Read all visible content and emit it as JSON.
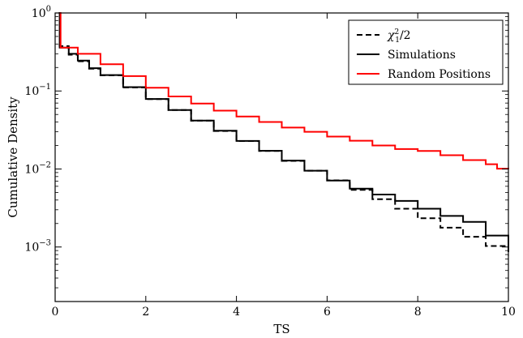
{
  "chart_data": {
    "type": "line",
    "xlabel": "TS",
    "ylabel": "Cumulative Density",
    "xlim": [
      0,
      10
    ],
    "ylim": [
      0.0002,
      1
    ],
    "yscale": "log",
    "grid": false,
    "legend_position": "top-right",
    "x_ticks": [
      {
        "value": 0,
        "label": "0"
      },
      {
        "value": 2,
        "label": "2"
      },
      {
        "value": 4,
        "label": "4"
      },
      {
        "value": 6,
        "label": "6"
      },
      {
        "value": 8,
        "label": "8"
      },
      {
        "value": 10,
        "label": "10"
      }
    ],
    "y_ticks": [
      {
        "value": 1,
        "base": "10",
        "exp": "0"
      },
      {
        "value": 0.1,
        "base": "10",
        "exp": "−1"
      },
      {
        "value": 0.01,
        "base": "10",
        "exp": "−2"
      },
      {
        "value": 0.001,
        "base": "10",
        "exp": "−3"
      }
    ],
    "series": [
      {
        "name": "χ²₁/2",
        "name_base": "χ",
        "name_sup": "2",
        "name_sub": "1",
        "name_tail": "/2",
        "color": "#000000",
        "dash": "dashed",
        "x": [
          0.08,
          0.1,
          0.3,
          0.5,
          0.75,
          1.0,
          1.5,
          2.0,
          2.5,
          3.0,
          3.5,
          4.0,
          4.5,
          5.0,
          5.5,
          6.0,
          6.5,
          7.0,
          7.5,
          8.0,
          8.5,
          9.0,
          9.5,
          10.0
        ],
        "y": [
          0.389,
          0.376,
          0.292,
          0.24,
          0.193,
          0.159,
          0.111,
          0.0786,
          0.0569,
          0.0416,
          0.0307,
          0.0228,
          0.017,
          0.0127,
          0.0095,
          0.00715,
          0.0054,
          0.0041,
          0.0031,
          0.00234,
          0.00177,
          0.00135,
          0.00103,
          0.00078
        ]
      },
      {
        "name": "Simulations",
        "color": "#000000",
        "dash": "solid",
        "x": [
          0.08,
          0.1,
          0.3,
          0.5,
          0.75,
          1.0,
          1.5,
          2.0,
          2.5,
          3.0,
          3.5,
          4.0,
          4.5,
          5.0,
          5.5,
          6.0,
          6.5,
          7.0,
          7.5,
          8.0,
          8.5,
          9.0,
          9.5,
          10.0
        ],
        "y": [
          1.0,
          0.36,
          0.3,
          0.245,
          0.196,
          0.16,
          0.112,
          0.079,
          0.057,
          0.0418,
          0.031,
          0.0229,
          0.0171,
          0.0128,
          0.0095,
          0.0071,
          0.0056,
          0.0047,
          0.0039,
          0.0031,
          0.0025,
          0.0021,
          0.0014,
          0.00095
        ]
      },
      {
        "name": "Random Positions",
        "color": "#ff0000",
        "dash": "solid",
        "x": [
          0.1,
          0.12,
          0.5,
          1.0,
          1.5,
          2.0,
          2.5,
          3.0,
          3.5,
          4.0,
          4.5,
          5.0,
          5.5,
          6.0,
          6.5,
          7.0,
          7.5,
          8.0,
          8.5,
          9.0,
          9.5,
          9.75,
          10.0
        ],
        "y": [
          1.0,
          0.36,
          0.3,
          0.22,
          0.155,
          0.11,
          0.085,
          0.069,
          0.056,
          0.047,
          0.04,
          0.034,
          0.03,
          0.026,
          0.023,
          0.02,
          0.018,
          0.017,
          0.015,
          0.013,
          0.0115,
          0.0101,
          0.01
        ]
      }
    ]
  }
}
